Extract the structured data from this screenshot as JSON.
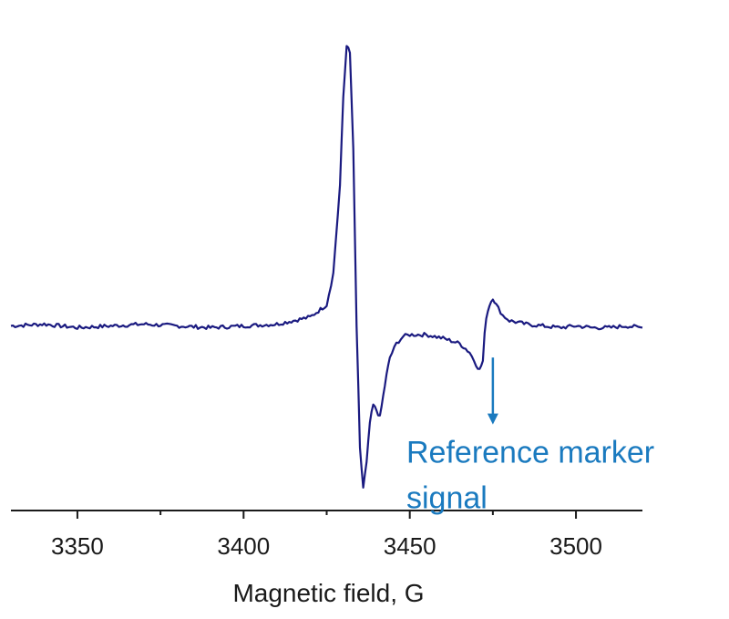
{
  "chart_data": {
    "type": "line",
    "title": "",
    "xlabel": "Magnetic field, G",
    "ylabel": "",
    "xlim": [
      3330,
      3520
    ],
    "ylim": [
      -1.05,
      1.75
    ],
    "grid": false,
    "xticks_major": [
      3350,
      3400,
      3450,
      3500
    ],
    "xtick_labels": [
      "3350",
      "3400",
      "3450",
      "3500"
    ],
    "xticks_minor": [
      3375,
      3425,
      3475
    ],
    "line_color": "#1a1a80",
    "annotation": {
      "lines": [
        "Reference marker",
        "signal"
      ],
      "x": 3475,
      "arrow_from_y": -0.18,
      "arrow_to_y": -0.55,
      "color": "#1a7abf"
    },
    "series": [
      {
        "x": [
          3330,
          3340,
          3350,
          3360,
          3370,
          3380,
          3390,
          3400,
          3410,
          3415,
          3420,
          3425,
          3427,
          3429,
          3430,
          3431,
          3432,
          3433,
          3434,
          3435,
          3436,
          3437,
          3438,
          3439,
          3440,
          3441,
          3442,
          3443,
          3444,
          3446,
          3448,
          3450,
          3455,
          3460,
          3465,
          3468,
          3470,
          3471,
          3472,
          3472.5,
          3473,
          3474,
          3475,
          3476,
          3478,
          3480,
          3485,
          3490,
          3495,
          3500,
          3505,
          3510,
          3515,
          3520
        ],
        "y": [
          0.0,
          0.01,
          -0.01,
          0.0,
          0.01,
          0.0,
          -0.01,
          0.0,
          0.01,
          0.03,
          0.05,
          0.12,
          0.3,
          0.8,
          1.3,
          1.6,
          1.55,
          1.0,
          0.0,
          -0.7,
          -0.92,
          -0.78,
          -0.55,
          -0.45,
          -0.48,
          -0.52,
          -0.4,
          -0.28,
          -0.18,
          -0.1,
          -0.06,
          -0.05,
          -0.05,
          -0.07,
          -0.1,
          -0.15,
          -0.22,
          -0.25,
          -0.2,
          -0.05,
          0.05,
          0.12,
          0.16,
          0.12,
          0.06,
          0.03,
          0.01,
          0.0,
          -0.01,
          0.0,
          -0.01,
          -0.01,
          0.0,
          -0.01
        ]
      }
    ]
  }
}
